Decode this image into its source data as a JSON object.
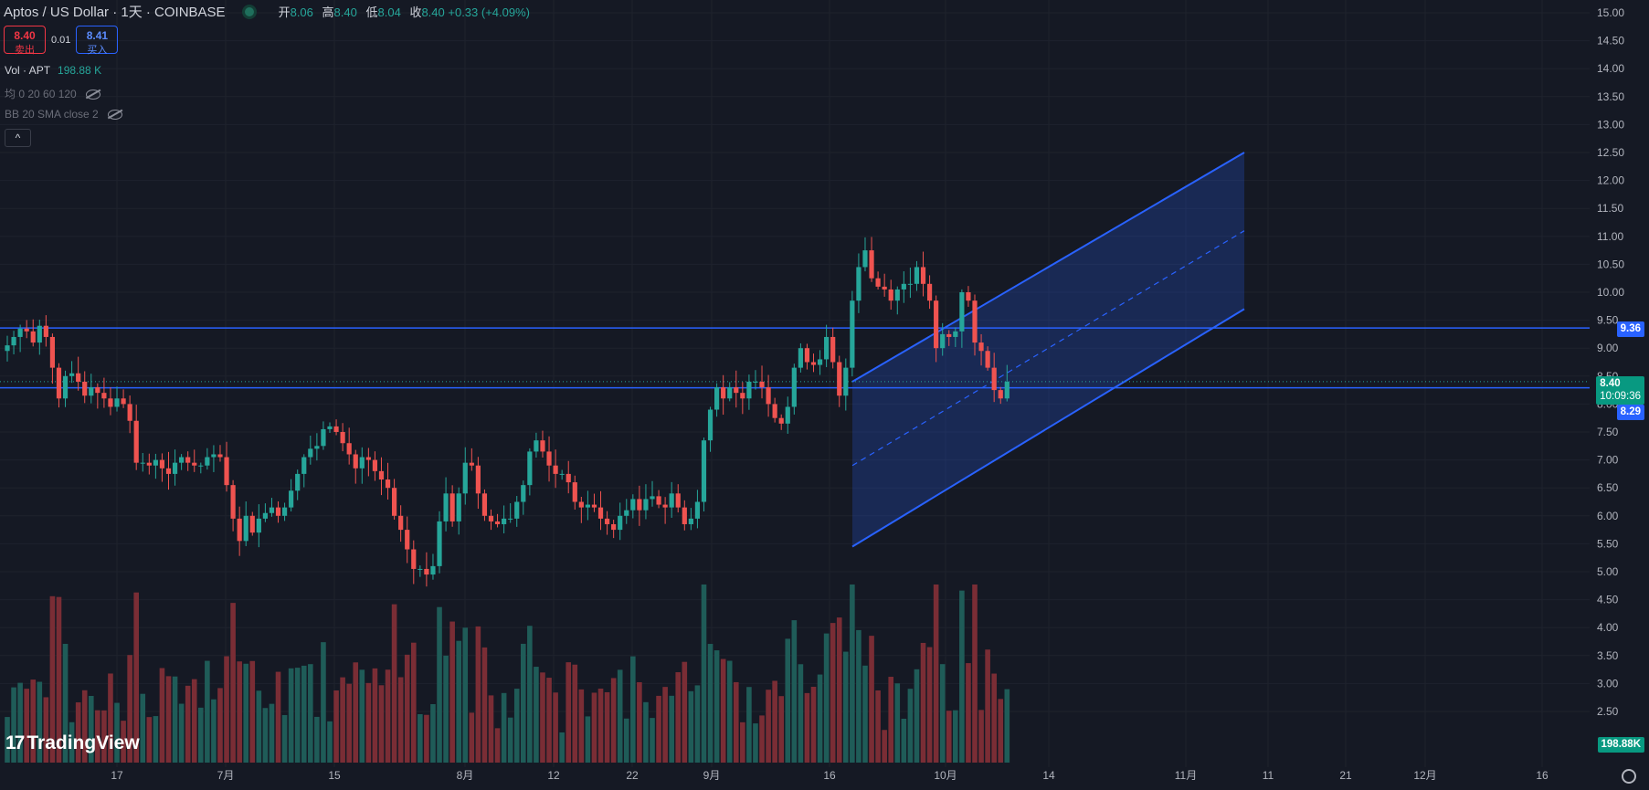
{
  "header": {
    "symbol": "Aptos / US Dollar · 1天 · COINBASE",
    "ohlc": [
      {
        "k": "开",
        "v": "8.06"
      },
      {
        "k": "高",
        "v": "8.40"
      },
      {
        "k": "低",
        "v": "8.04"
      },
      {
        "k": "收",
        "v": "8.40 +0.33 (+4.09%)"
      }
    ]
  },
  "trade": {
    "sell_price": "8.40",
    "sell_label": "卖出",
    "spread": "0.01",
    "buy_price": "8.41",
    "buy_label": "买入"
  },
  "indicators": {
    "vol_name": "Vol · APT",
    "vol_value": "198.88 K",
    "ma_label": "均 0 20 60 120",
    "bb_label": "BB 20 SMA close 2"
  },
  "logo_text": "TradingView",
  "price_badges": {
    "level_high": "9.36",
    "last_price": "8.40",
    "countdown": "10:09:36",
    "level_low": "8.29",
    "volume": "198.88K"
  },
  "colors": {
    "up": "#26a69a",
    "down": "#ef5350",
    "line": "#2962ff",
    "vol_up": "#1f5c58",
    "vol_down": "#7a2d35",
    "bg": "#151924"
  },
  "chart_data": {
    "type": "candlestick",
    "y_axis_ticks": [
      "15.00",
      "14.50",
      "14.00",
      "13.50",
      "13.00",
      "12.50",
      "12.00",
      "11.50",
      "11.00",
      "10.50",
      "10.00",
      "9.50",
      "9.00",
      "8.50",
      "8.00",
      "7.50",
      "7.00",
      "6.50",
      "6.00",
      "5.50",
      "5.00",
      "4.50",
      "4.00",
      "3.50",
      "3.00",
      "2.50"
    ],
    "ylim": [
      2.0,
      15.0
    ],
    "x_axis_ticks": [
      "17",
      "7月",
      "15",
      "8月",
      "12",
      "22",
      "9月",
      "16",
      "10月",
      "14",
      "11月",
      "11",
      "21",
      "12月",
      "16"
    ],
    "horizontal_lines": [
      9.36,
      8.29
    ],
    "channel": {
      "lower_start": 5.45,
      "lower_end": 9.7,
      "upper_start": 8.4,
      "upper_end": 12.5,
      "mid_start": 6.9,
      "mid_end": 11.1
    },
    "candles_approx": {
      "start_date": "2023-06-06",
      "closes": [
        9.05,
        9.2,
        9.35,
        9.3,
        9.1,
        9.4,
        9.2,
        8.65,
        8.1,
        8.5,
        8.55,
        8.4,
        8.15,
        8.3,
        8.2,
        8.1,
        7.95,
        8.1,
        8.0,
        7.7,
        6.95,
        6.95,
        6.9,
        7.0,
        6.85,
        6.75,
        6.95,
        7.05,
        6.95,
        6.9,
        6.9,
        7.05,
        7.1,
        7.05,
        6.55,
        5.95,
        5.55,
        6.0,
        5.7,
        5.95,
        6.05,
        6.15,
        6.0,
        6.15,
        6.45,
        6.75,
        7.05,
        7.2,
        7.25,
        7.55,
        7.6,
        7.5,
        7.3,
        7.1,
        6.85,
        7.05,
        7.0,
        6.8,
        6.65,
        6.5,
        6.0,
        5.75,
        5.4,
        5.05,
        5.05,
        4.95,
        5.1,
        5.9,
        6.4,
        5.9,
        6.4,
        6.95,
        6.9,
        6.4,
        6.0,
        5.9,
        5.85,
        5.95,
        5.95,
        6.25,
        6.55,
        7.15,
        7.35,
        7.15,
        6.9,
        6.75,
        6.75,
        6.6,
        6.25,
        6.15,
        6.2,
        6.15,
        5.95,
        5.85,
        5.75,
        6.0,
        6.1,
        6.3,
        6.1,
        6.3,
        6.35,
        6.2,
        6.15,
        6.4,
        6.15,
        5.85,
        5.95,
        6.25,
        7.35,
        7.9,
        8.3,
        8.1,
        8.3,
        8.2,
        8.1,
        8.4,
        8.4,
        8.3,
        8.0,
        7.75,
        7.65,
        7.95,
        8.65,
        9.0,
        8.75,
        8.7,
        8.8,
        9.2,
        8.75,
        8.15,
        8.65,
        9.85,
        10.45,
        10.75,
        10.25,
        10.1,
        10.05,
        9.85,
        10.05,
        10.15,
        10.15,
        10.45,
        10.15,
        9.85,
        9.0,
        9.25,
        9.2,
        9.3,
        10.0,
        9.85,
        9.1,
        8.95,
        8.65,
        8.25,
        8.1,
        8.4
      ]
    }
  }
}
